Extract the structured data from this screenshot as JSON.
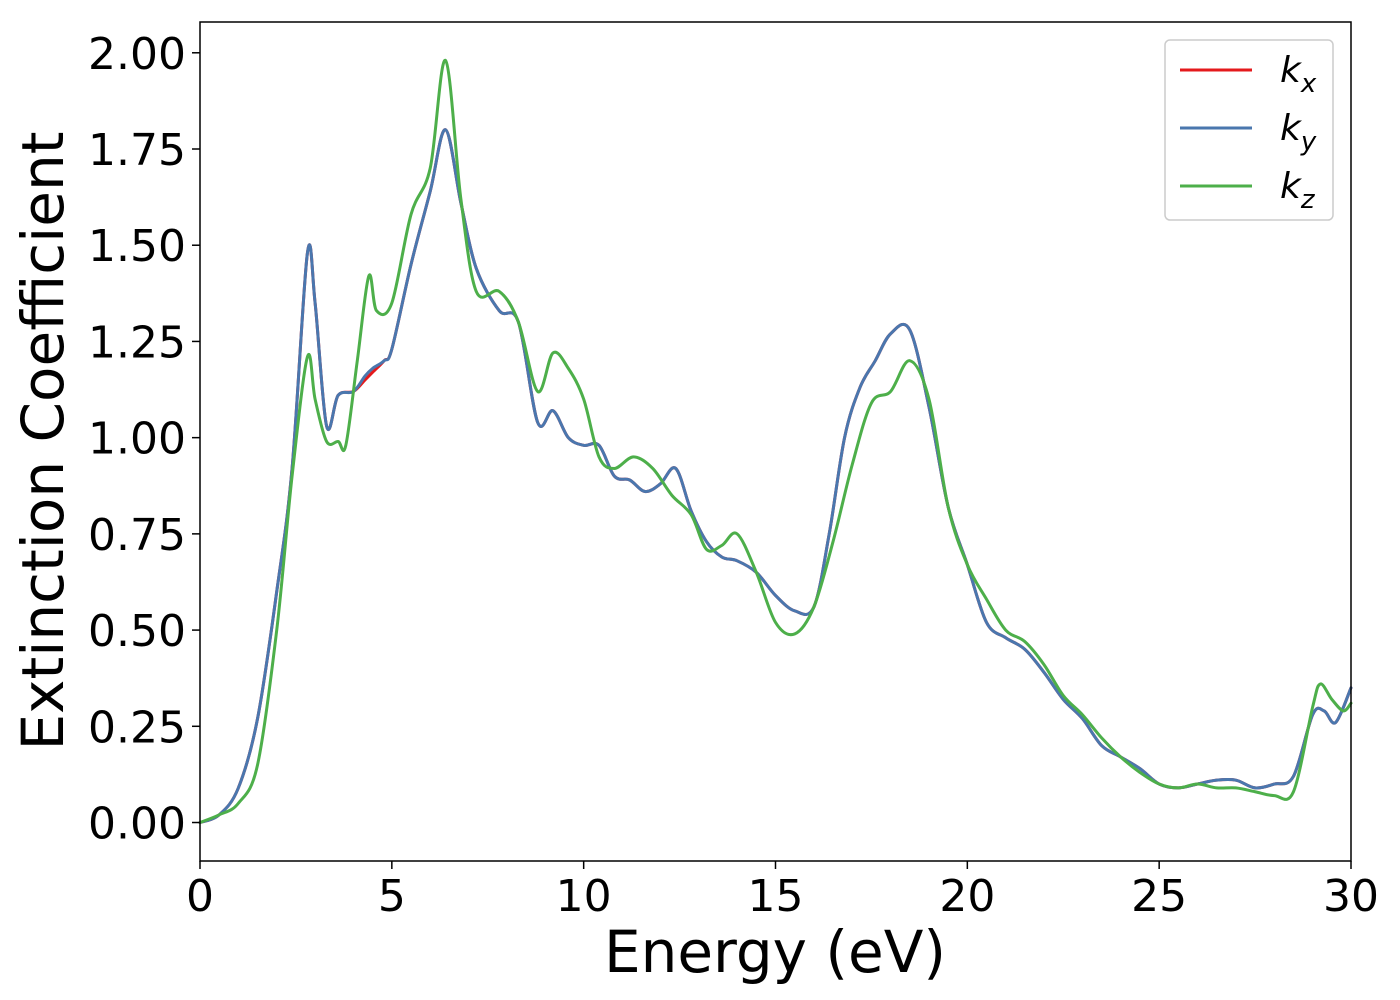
{
  "chart_data": {
    "type": "line",
    "title": "",
    "xlabel": "Energy (eV)",
    "ylabel": "Extinction Coefficient",
    "xlim": [
      0,
      30
    ],
    "ylim": [
      -0.1,
      2.08
    ],
    "xticks": [
      0,
      5,
      10,
      15,
      20,
      25,
      30
    ],
    "xtick_labels": [
      "0",
      "5",
      "10",
      "15",
      "20",
      "25",
      "30"
    ],
    "yticks": [
      0.0,
      0.25,
      0.5,
      0.75,
      1.0,
      1.25,
      1.5,
      1.75,
      2.0
    ],
    "ytick_labels": [
      "0.00",
      "0.25",
      "0.50",
      "0.75",
      "1.00",
      "1.25",
      "1.50",
      "1.75",
      "2.00"
    ],
    "grid": false,
    "legend_position": "top-right",
    "series": [
      {
        "name": "k",
        "subscript": "x",
        "color": "#e41a1c",
        "x": [
          0,
          0.5,
          1.0,
          1.5,
          2.0,
          2.4,
          2.8,
          3.0,
          3.3,
          3.6,
          4.0,
          4.3,
          4.5,
          4.8,
          5.0,
          5.5,
          6.0,
          6.4,
          6.8,
          7.2,
          7.8,
          8.3,
          8.8,
          9.2,
          9.6,
          10.0,
          10.4,
          10.8,
          11.2,
          11.6,
          12.0,
          12.4,
          12.8,
          13.2,
          13.6,
          14.0,
          14.5,
          15.0,
          15.5,
          16.0,
          16.4,
          16.8,
          17.2,
          17.6,
          18.0,
          18.5,
          19.0,
          19.5,
          20.0,
          20.5,
          21.0,
          21.5,
          22.0,
          22.5,
          23.0,
          23.5,
          24.0,
          24.5,
          25.0,
          25.5,
          26.0,
          26.5,
          27.0,
          27.5,
          28.0,
          28.5,
          29.0,
          29.3,
          29.6,
          30.0
        ],
        "y": [
          0,
          0.02,
          0.09,
          0.27,
          0.6,
          0.92,
          1.48,
          1.35,
          1.03,
          1.11,
          1.12,
          1.15,
          1.17,
          1.2,
          1.23,
          1.45,
          1.64,
          1.8,
          1.61,
          1.44,
          1.33,
          1.3,
          1.04,
          1.07,
          1.0,
          0.98,
          0.98,
          0.9,
          0.89,
          0.86,
          0.88,
          0.92,
          0.81,
          0.73,
          0.69,
          0.68,
          0.65,
          0.59,
          0.55,
          0.56,
          0.75,
          1.0,
          1.13,
          1.2,
          1.27,
          1.28,
          1.08,
          0.82,
          0.67,
          0.52,
          0.48,
          0.45,
          0.39,
          0.32,
          0.27,
          0.2,
          0.17,
          0.14,
          0.1,
          0.09,
          0.1,
          0.11,
          0.11,
          0.09,
          0.1,
          0.12,
          0.28,
          0.29,
          0.26,
          0.35
        ]
      },
      {
        "name": "k",
        "subscript": "y",
        "color": "#4a77ae",
        "x": [
          0,
          0.5,
          1.0,
          1.5,
          2.0,
          2.4,
          2.8,
          3.0,
          3.3,
          3.6,
          4.0,
          4.3,
          4.5,
          4.8,
          5.0,
          5.5,
          6.0,
          6.4,
          6.8,
          7.2,
          7.8,
          8.3,
          8.8,
          9.2,
          9.6,
          10.0,
          10.4,
          10.8,
          11.2,
          11.6,
          12.0,
          12.4,
          12.8,
          13.2,
          13.6,
          14.0,
          14.5,
          15.0,
          15.5,
          16.0,
          16.4,
          16.8,
          17.2,
          17.6,
          18.0,
          18.5,
          19.0,
          19.5,
          20.0,
          20.5,
          21.0,
          21.5,
          22.0,
          22.5,
          23.0,
          23.5,
          24.0,
          24.5,
          25.0,
          25.5,
          26.0,
          26.5,
          27.0,
          27.5,
          28.0,
          28.5,
          29.0,
          29.3,
          29.6,
          30.0
        ],
        "y": [
          0,
          0.02,
          0.09,
          0.27,
          0.6,
          0.92,
          1.48,
          1.35,
          1.03,
          1.11,
          1.12,
          1.16,
          1.18,
          1.2,
          1.23,
          1.45,
          1.64,
          1.8,
          1.61,
          1.44,
          1.33,
          1.3,
          1.04,
          1.07,
          1.0,
          0.98,
          0.98,
          0.9,
          0.89,
          0.86,
          0.88,
          0.92,
          0.81,
          0.73,
          0.69,
          0.68,
          0.65,
          0.59,
          0.55,
          0.56,
          0.75,
          1.0,
          1.13,
          1.2,
          1.27,
          1.28,
          1.08,
          0.82,
          0.67,
          0.52,
          0.48,
          0.45,
          0.39,
          0.32,
          0.27,
          0.2,
          0.17,
          0.14,
          0.1,
          0.09,
          0.1,
          0.11,
          0.11,
          0.09,
          0.1,
          0.12,
          0.28,
          0.29,
          0.26,
          0.35
        ]
      },
      {
        "name": "k",
        "subscript": "z",
        "color": "#4daf4a",
        "x": [
          0,
          0.5,
          1.0,
          1.5,
          2.0,
          2.4,
          2.8,
          3.0,
          3.3,
          3.6,
          3.8,
          4.1,
          4.4,
          4.6,
          5.0,
          5.5,
          6.0,
          6.4,
          6.8,
          7.2,
          7.8,
          8.3,
          8.8,
          9.2,
          9.6,
          10.0,
          10.4,
          10.8,
          11.3,
          11.8,
          12.3,
          12.8,
          13.2,
          13.6,
          14.0,
          14.5,
          15.0,
          15.5,
          16.0,
          16.5,
          17.0,
          17.5,
          18.0,
          18.5,
          19.0,
          19.5,
          20.0,
          20.5,
          21.0,
          21.5,
          22.0,
          22.5,
          23.0,
          23.5,
          24.0,
          24.5,
          25.0,
          25.5,
          26.0,
          26.5,
          27.0,
          27.5,
          28.0,
          28.5,
          29.0,
          29.2,
          29.5,
          29.8,
          30.0
        ],
        "y": [
          0,
          0.02,
          0.05,
          0.15,
          0.5,
          0.9,
          1.21,
          1.1,
          0.99,
          0.99,
          0.98,
          1.2,
          1.42,
          1.33,
          1.35,
          1.58,
          1.7,
          1.98,
          1.62,
          1.38,
          1.38,
          1.3,
          1.12,
          1.22,
          1.18,
          1.1,
          0.95,
          0.92,
          0.95,
          0.92,
          0.85,
          0.8,
          0.71,
          0.72,
          0.75,
          0.65,
          0.52,
          0.49,
          0.56,
          0.73,
          0.93,
          1.09,
          1.12,
          1.2,
          1.1,
          0.82,
          0.67,
          0.58,
          0.5,
          0.47,
          0.41,
          0.33,
          0.28,
          0.22,
          0.17,
          0.13,
          0.1,
          0.09,
          0.1,
          0.09,
          0.09,
          0.08,
          0.07,
          0.08,
          0.3,
          0.36,
          0.32,
          0.29,
          0.31
        ]
      }
    ]
  }
}
